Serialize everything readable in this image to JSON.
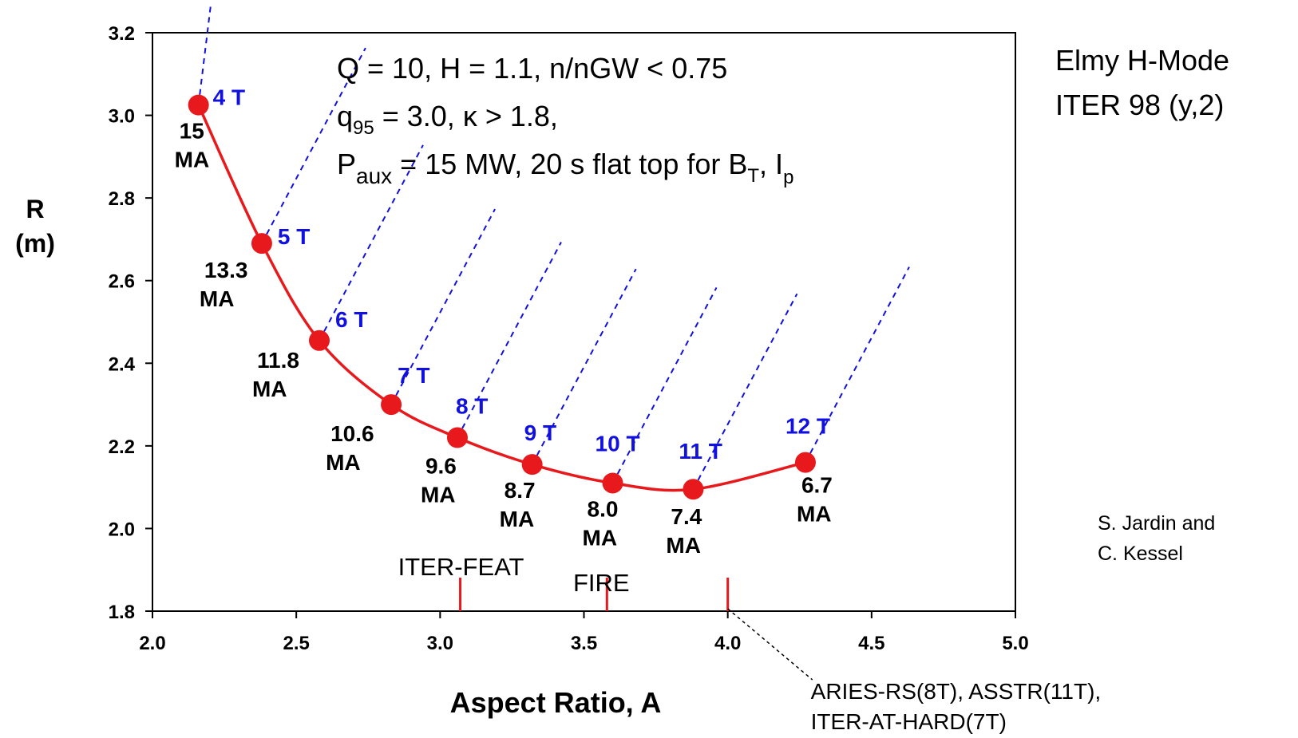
{
  "chart_data": {
    "type": "scatter",
    "xlabel": "Aspect Ratio, A",
    "ylabel": "R (m)",
    "xlim": [
      2.0,
      5.0
    ],
    "ylim": [
      1.8,
      3.2
    ],
    "x_ticks": [
      "2.0",
      "2.5",
      "3.0",
      "3.5",
      "4.0",
      "4.5",
      "5.0"
    ],
    "y_ticks": [
      "1.8",
      "2.0",
      "2.2",
      "2.4",
      "2.6",
      "2.8",
      "3.0",
      "3.2"
    ],
    "grid": false,
    "series_color": "#e8191c",
    "bt_color": "#1010e0",
    "points": [
      {
        "x": 2.16,
        "y": 3.025,
        "bt": "4 T",
        "ip": "15",
        "ip_unit": "MA"
      },
      {
        "x": 2.38,
        "y": 2.69,
        "bt": "5 T",
        "ip": "13.3",
        "ip_unit": "MA"
      },
      {
        "x": 2.58,
        "y": 2.455,
        "bt": "6 T",
        "ip": "11.8",
        "ip_unit": "MA"
      },
      {
        "x": 2.83,
        "y": 2.3,
        "bt": "7 T",
        "ip": "10.6",
        "ip_unit": "MA"
      },
      {
        "x": 3.06,
        "y": 2.22,
        "bt": "8 T",
        "ip": "9.6",
        "ip_unit": "MA"
      },
      {
        "x": 3.32,
        "y": 2.155,
        "bt": "9 T",
        "ip": "8.7",
        "ip_unit": "MA"
      },
      {
        "x": 3.6,
        "y": 2.11,
        "bt": "10 T",
        "ip": "8.0",
        "ip_unit": "MA"
      },
      {
        "x": 3.88,
        "y": 2.095,
        "bt": "11 T",
        "ip": "7.4",
        "ip_unit": "MA"
      },
      {
        "x": 4.27,
        "y": 2.16,
        "bt": "12 T",
        "ip": "6.7",
        "ip_unit": "MA"
      }
    ],
    "device_markers": [
      {
        "x": 3.07,
        "label": "ITER-FEAT"
      },
      {
        "x": 3.58,
        "label": "FIRE"
      },
      {
        "x": 4.0,
        "label": "ARIES-RS(8T), ASSTR(11T),",
        "label2": "ITER-AT-HARD(7T)"
      }
    ],
    "annotation_lines": [
      "Q = 10,  H = 1.1, n/nGW < 0.75"
    ],
    "annotation_q95": {
      "prefix": "q",
      "sub": "95",
      "rest": " = 3.0, ",
      "kappa": "κ",
      "rest2": " > 1.8,"
    },
    "annotation_paux": {
      "prefix": "P",
      "sub": "aux",
      "rest": " = 15 MW, 20 s  flat top for B",
      "sub2": "T",
      "mid": ", I",
      "sub3": "p"
    },
    "side_note": [
      "Elmy H-Mode",
      "ITER 98 (y,2)"
    ],
    "credit": [
      "S. Jardin and",
      "C. Kessel"
    ]
  }
}
